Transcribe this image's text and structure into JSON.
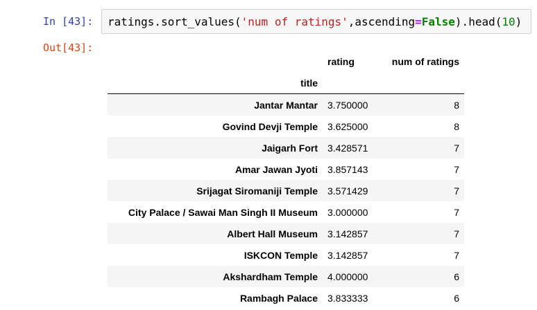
{
  "cell": {
    "input_prompt": "In [43]:",
    "output_prompt": "Out[43]:",
    "code": {
      "t1": "ratings.sort_values(",
      "t2": "'num of ratings'",
      "t3": ",ascending",
      "t4": "=",
      "t5": "False",
      "t6": ").head(",
      "t7": "10",
      "t8": ")"
    },
    "colors": {
      "input_prompt": "#303f9f",
      "output_prompt": "#d84315",
      "string": "#ba2121",
      "keyword": "#008000",
      "operator": "#aa22ff",
      "row_stripe": "#f5f5f5"
    }
  },
  "dataframe": {
    "columns": [
      "rating",
      "num of ratings"
    ],
    "index_name": "title",
    "rows": [
      {
        "title": "Jantar Mantar",
        "rating": "3.750000",
        "num": "8"
      },
      {
        "title": "Govind Devji Temple",
        "rating": "3.625000",
        "num": "8"
      },
      {
        "title": "Jaigarh Fort",
        "rating": "3.428571",
        "num": "7"
      },
      {
        "title": "Amar Jawan Jyoti",
        "rating": "3.857143",
        "num": "7"
      },
      {
        "title": "Srijagat Siromaniji Temple",
        "rating": "3.571429",
        "num": "7"
      },
      {
        "title": "City Palace / Sawai Man Singh II Museum",
        "rating": "3.000000",
        "num": "7"
      },
      {
        "title": "Albert Hall Museum",
        "rating": "3.142857",
        "num": "7"
      },
      {
        "title": "ISKCON Temple",
        "rating": "3.142857",
        "num": "7"
      },
      {
        "title": "Akshardham Temple",
        "rating": "4.000000",
        "num": "6"
      },
      {
        "title": "Rambagh Palace",
        "rating": "3.833333",
        "num": "6"
      }
    ]
  }
}
